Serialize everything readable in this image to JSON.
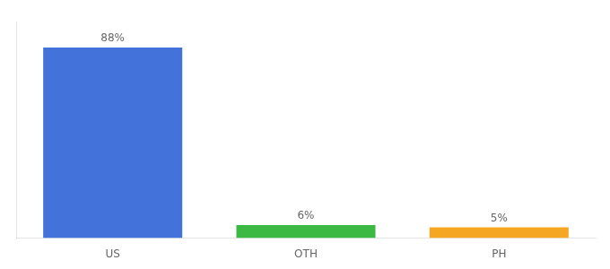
{
  "chart_data": {
    "type": "bar",
    "categories": [
      "US",
      "OTH",
      "PH"
    ],
    "values": [
      88,
      6,
      5
    ],
    "value_labels": [
      "88%",
      "6%",
      "5%"
    ],
    "colors": [
      "#4472db",
      "#3cb943",
      "#f5a623"
    ],
    "ylim": [
      0,
      100
    ],
    "grid": false,
    "data_labels": true,
    "tick_labels": "x"
  }
}
